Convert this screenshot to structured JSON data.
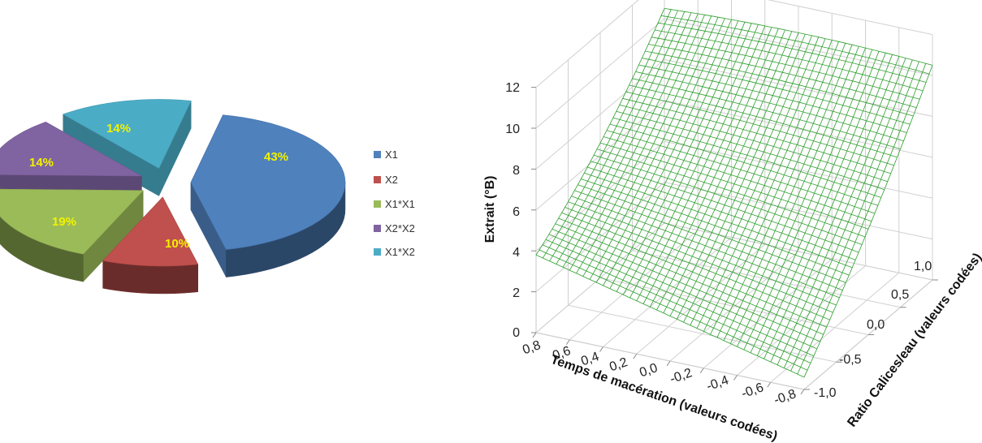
{
  "chart_data": [
    {
      "type": "pie",
      "title": "",
      "categories": [
        "X1",
        "X2",
        "X1*X1",
        "X2*X2",
        "X1*X2"
      ],
      "values": [
        43,
        10,
        19,
        14,
        14
      ],
      "labels": [
        "43%",
        "10%",
        "19%",
        "14%",
        "14%"
      ],
      "colors": [
        "#4f81bd",
        "#c0504d",
        "#9bbb59",
        "#8064a2",
        "#4bacc6"
      ],
      "exploded": true,
      "style": "3d",
      "legend": {
        "placement": "right",
        "entries": [
          "X1",
          "X2",
          "X1*X1",
          "X2*X2",
          "X1*X2"
        ]
      }
    },
    {
      "type": "surface",
      "title": "",
      "xlabel": "Temps de macération (valeurs codées)",
      "ylabel": "Ratio Calices/eau (valeurs codées)",
      "zlabel": "Extrait (°B)",
      "xlim": [
        -0.8,
        0.8
      ],
      "ylim": [
        -1.0,
        1.0
      ],
      "zlim": [
        0,
        12
      ],
      "x_ticks": [
        "0,8",
        "0,6",
        "0,4",
        "0,2",
        "0,0",
        "-0,2",
        "-0,4",
        "-0,6",
        "-0,8"
      ],
      "y_ticks": [
        "-1,0",
        "-0,5",
        "0,0",
        "0,5",
        "1,0"
      ],
      "z_ticks": [
        "0",
        "2",
        "4",
        "6",
        "8",
        "10",
        "12"
      ],
      "corner_values": [
        {
          "x": 0.8,
          "y": -1.0,
          "z": 3.8
        },
        {
          "x": -0.8,
          "y": -1.0,
          "z": 0.6
        },
        {
          "x": 0.8,
          "y": 1.0,
          "z": 10.5
        },
        {
          "x": -0.8,
          "y": 1.0,
          "z": 10.5
        }
      ],
      "surface_color": "#2e9e2e",
      "grid": true
    }
  ]
}
